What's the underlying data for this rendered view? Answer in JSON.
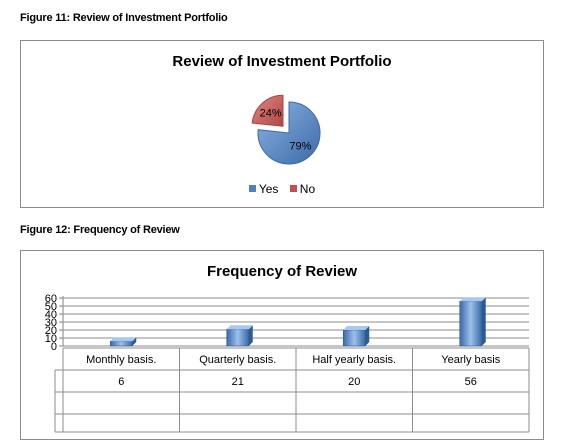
{
  "figure11": {
    "caption": "Figure 11: Review of Investment Portfolio"
  },
  "figure12": {
    "caption": "Figure 12: Frequency of Review"
  },
  "colors": {
    "blue": "#4f81bd",
    "red": "#c0504d"
  },
  "chart_data": [
    {
      "type": "pie",
      "title": "Review of Investment Portfolio",
      "categories": [
        "Yes",
        "No"
      ],
      "values": [
        79,
        24
      ],
      "labels": [
        "79%",
        "24%"
      ],
      "legend_position": "bottom",
      "exploded": "No"
    },
    {
      "type": "bar",
      "title": "Frequency of Review",
      "categories": [
        "Monthly basis.",
        "Quarterly basis.",
        "Half yearly basis.",
        "Yearly basis"
      ],
      "values": [
        6,
        21,
        20,
        56
      ],
      "ylim": [
        0,
        60
      ],
      "yticks": [
        0,
        10,
        20,
        30,
        40,
        50,
        60
      ],
      "grid": true,
      "data_table": true
    }
  ]
}
